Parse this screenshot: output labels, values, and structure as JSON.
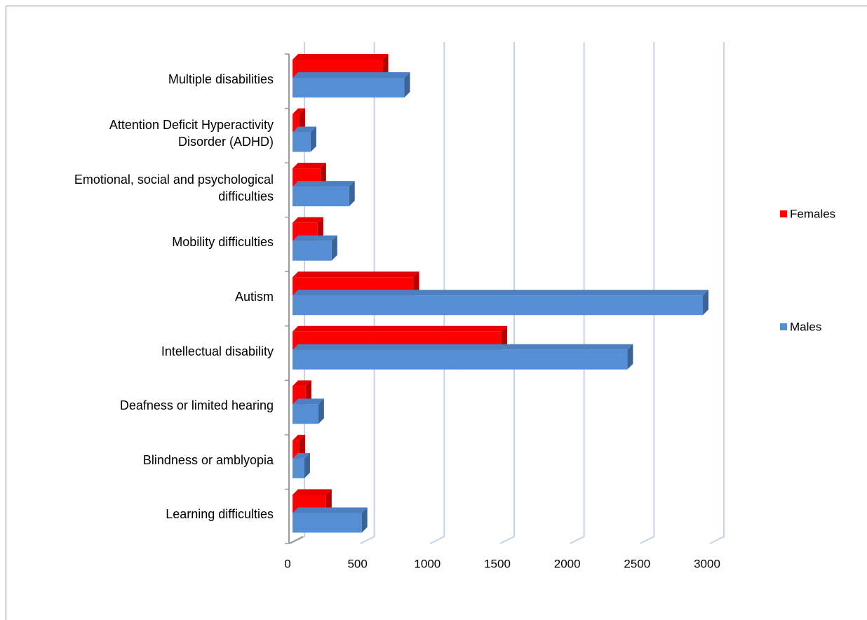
{
  "chart_data": {
    "type": "bar3d_horizontal",
    "categories": [
      "Learning difficulties",
      "Blindness or amblyopia",
      "Deafness or limited hearing",
      "Intellectual disability",
      "Autism",
      "Mobility difficulties",
      "Emotional, social and psychological\ndifficulties",
      "Attention Deficit Hyperactivity\nDisorder (ADHD)",
      "Multiple disabilities"
    ],
    "series": [
      {
        "name": "Females",
        "color": "#ff0000",
        "values": [
          255,
          65,
          110,
          1510,
          880,
          195,
          215,
          65,
          660
        ]
      },
      {
        "name": "Males",
        "color": "#558ed5",
        "values": [
          510,
          100,
          200,
          2410,
          2950,
          295,
          420,
          145,
          815
        ]
      }
    ],
    "xlim": [
      0,
      3000
    ],
    "xticks": [
      0,
      500,
      1000,
      1500,
      2000,
      2500,
      3000
    ],
    "grid": true,
    "legend": "right"
  }
}
